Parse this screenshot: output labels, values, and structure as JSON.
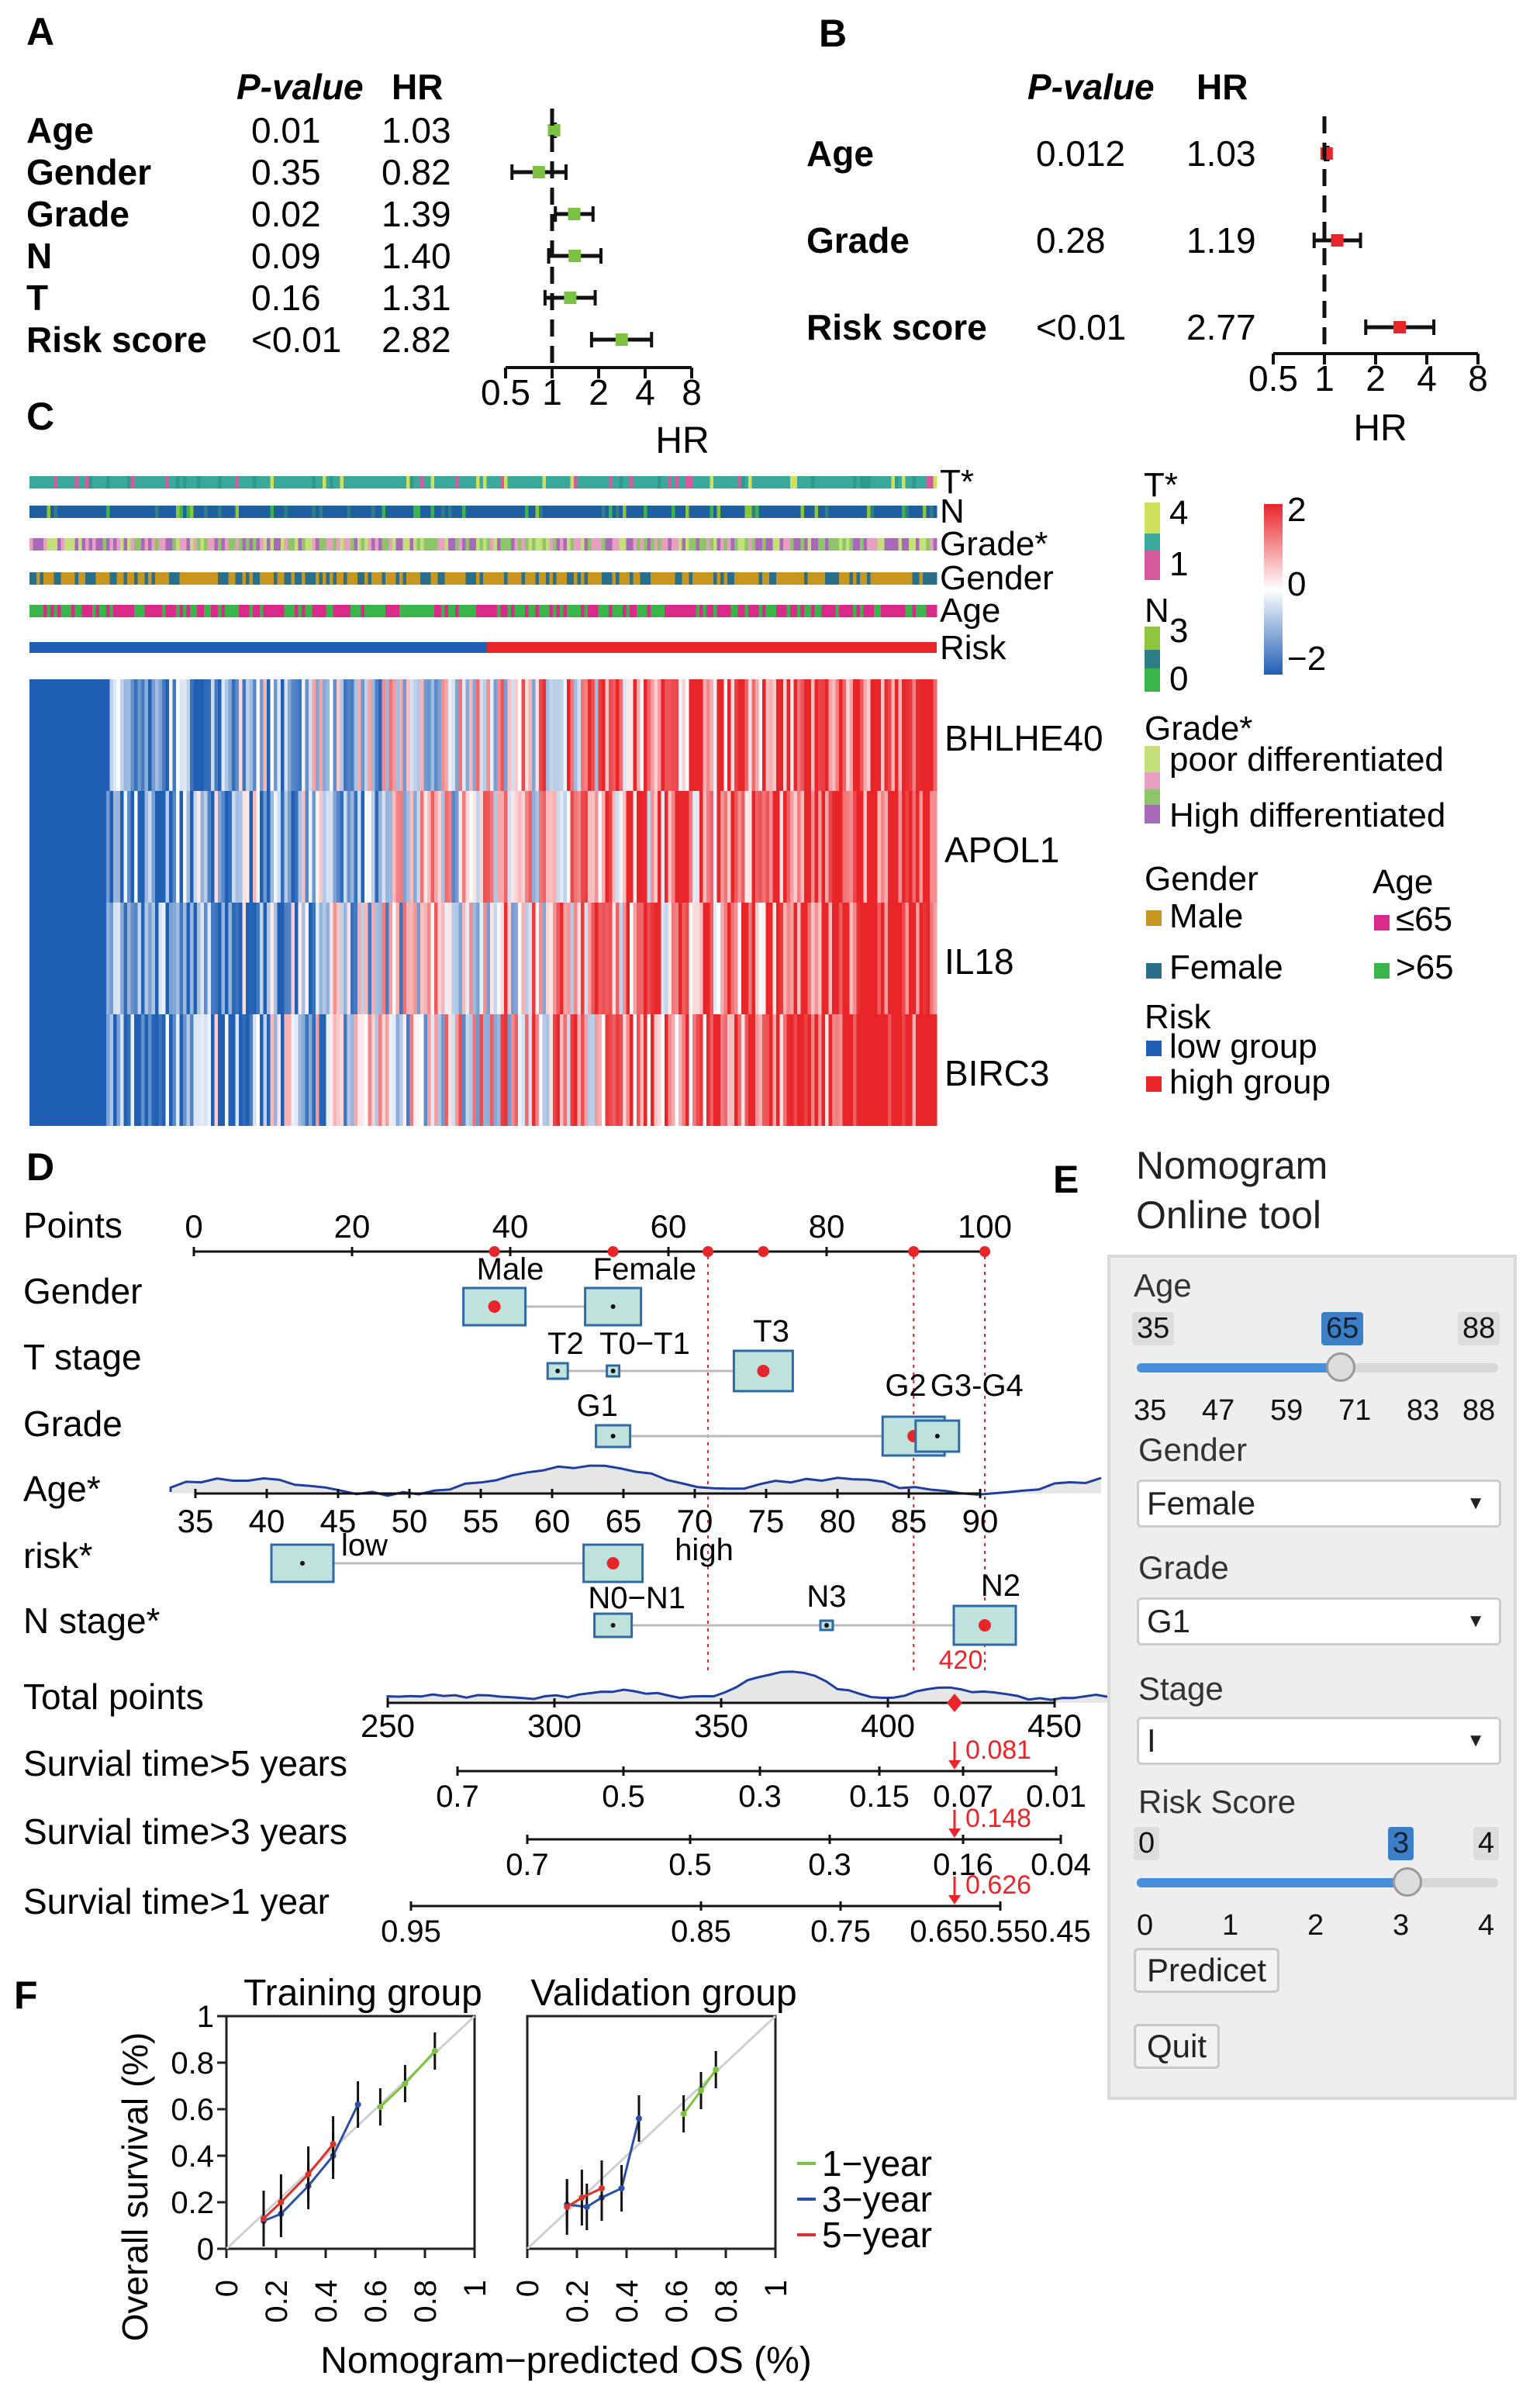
{
  "panel_labels": {
    "A": "A",
    "B": "B",
    "C": "C",
    "D": "D",
    "E": "E",
    "F": "F"
  },
  "forest_a": {
    "headers": {
      "p": "P-value",
      "hr": "HR"
    },
    "rows": [
      {
        "name": "Age",
        "p": "0.01",
        "hr": "1.03",
        "hr_val": 1.03,
        "lo": 1.01,
        "hi": 1.05
      },
      {
        "name": "Gender",
        "p": "0.35",
        "hr": "0.82",
        "hr_val": 0.82,
        "lo": 0.55,
        "hi": 1.23
      },
      {
        "name": "Grade",
        "p": "0.02",
        "hr": "1.39",
        "hr_val": 1.39,
        "lo": 1.05,
        "hi": 1.84
      },
      {
        "name": "N",
        "p": "0.09",
        "hr": "1.40",
        "hr_val": 1.4,
        "lo": 0.95,
        "hi": 2.07
      },
      {
        "name": "T",
        "p": "0.16",
        "hr": "1.31",
        "hr_val": 1.31,
        "lo": 0.9,
        "hi": 1.9
      },
      {
        "name": "Risk score",
        "p": "<0.01",
        "hr": "2.82",
        "hr_val": 2.82,
        "lo": 1.8,
        "hi": 4.4
      }
    ],
    "ticks": [
      "0.5",
      "1",
      "2",
      "4",
      "8"
    ],
    "xlabel": "HR",
    "marker_color": "#7cc242"
  },
  "forest_b": {
    "headers": {
      "p": "P-value",
      "hr": "HR"
    },
    "rows": [
      {
        "name": "Age",
        "p": "0.012",
        "hr": "1.03",
        "hr_val": 1.03,
        "lo": 1.01,
        "hi": 1.05
      },
      {
        "name": "Grade",
        "p": "0.28",
        "hr": "1.19",
        "hr_val": 1.19,
        "lo": 0.87,
        "hi": 1.63
      },
      {
        "name": "Risk score",
        "p": "<0.01",
        "hr": "2.77",
        "hr_val": 2.77,
        "lo": 1.75,
        "hi": 4.4
      }
    ],
    "ticks": [
      "0.5",
      "1",
      "2",
      "4",
      "8"
    ],
    "xlabel": "HR",
    "marker_color": "#e8262a"
  },
  "heatmap": {
    "annotation_rows": [
      "T*",
      "N",
      "Grade*",
      "Gender",
      "Age",
      "Risk"
    ],
    "genes": [
      "BHLHE40",
      "APOL1",
      "IL18",
      "BIRC3"
    ],
    "legend": {
      "t_title": "T*",
      "t_labels": [
        "4",
        "1"
      ],
      "n_title": "N",
      "n_labels": [
        "3",
        "0"
      ],
      "scale_labels": [
        "2",
        "0",
        "−2"
      ],
      "grade_title": "Grade*",
      "grade_labels": [
        "poor differentiated",
        "High differentiated"
      ],
      "gender_title": "Gender",
      "gender_labels": [
        "Male",
        "Female"
      ],
      "age_title": "Age",
      "age_labels": [
        "≤65",
        ">65"
      ],
      "risk_title": "Risk",
      "risk_labels": [
        "low group",
        "high group"
      ]
    },
    "colors": {
      "low": "#1f5fb4",
      "mid": "#ffffff",
      "high": "#e8262a",
      "male": "#c8961e",
      "female": "#2a6f8a",
      "young": "#d92a8a",
      "old": "#3ab54a"
    }
  },
  "nomogram": {
    "rows": [
      "Points",
      "Gender",
      "T stage",
      "Grade",
      "Age*",
      "risk*",
      "N stage*",
      "Total points",
      "Survial time>5 years",
      "Survial time>3 years",
      "Survial time>1 year"
    ],
    "points_ticks": [
      "0",
      "20",
      "40",
      "60",
      "80",
      "100"
    ],
    "gender_labels": [
      "Male",
      "Female"
    ],
    "t_labels": [
      "T2",
      "T0−T1",
      "T3"
    ],
    "grade_labels": [
      "G1",
      "G2",
      "G3-G4"
    ],
    "age_ticks": [
      "35",
      "40",
      "45",
      "50",
      "55",
      "60",
      "65",
      "70",
      "75",
      "80",
      "85",
      "90"
    ],
    "risk_labels": [
      "low",
      "high"
    ],
    "n_labels": [
      "N0−N1",
      "N3",
      "N2"
    ],
    "total_ticks": [
      "250",
      "300",
      "350",
      "400",
      "450"
    ],
    "total_value": "420",
    "s5_ticks": [
      "0.7",
      "0.5",
      "0.3",
      "0.15",
      "0.07",
      "0.01"
    ],
    "s5_value": "0.081",
    "s3_ticks": [
      "0.7",
      "0.5",
      "0.3",
      "0.16",
      "0.04"
    ],
    "s3_value": "0.148",
    "s1_ticks": [
      "0.95",
      "0.85",
      "0.75",
      "0.650.550.45"
    ],
    "s1_value": "0.626"
  },
  "tool": {
    "title1": "Nomogram",
    "title2": "Online tool",
    "age": {
      "label": "Age",
      "min": "35",
      "max": "88",
      "value": "65",
      "ticks": [
        "35",
        "47",
        "59",
        "71",
        "83",
        "88"
      ]
    },
    "gender": {
      "label": "Gender",
      "value": "Female"
    },
    "grade": {
      "label": "Grade",
      "value": "G1"
    },
    "stage": {
      "label": "Stage",
      "value": "I"
    },
    "risk": {
      "label": "Risk Score",
      "min": "0",
      "max": "4",
      "value": "3",
      "ticks": [
        "0",
        "1",
        "2",
        "3",
        "4"
      ]
    },
    "predict_label": "Predicet",
    "quit_label": "Quit"
  },
  "calibration": {
    "panels": [
      "Training group",
      "Validation group"
    ],
    "ylabel": "Overall survival (%)",
    "xlabel": "Nomogram−predicted OS (%)",
    "y_ticks": [
      "0",
      "0.2",
      "0.4",
      "0.6",
      "0.8",
      "1"
    ],
    "x_ticks": [
      "0",
      "0.2",
      "0.4",
      "0.6",
      "0.8",
      "1"
    ],
    "legend": [
      "1−year",
      "3−year",
      "5−year"
    ],
    "colors": {
      "1y": "#7cc242",
      "3y": "#2b4fa8",
      "5y": "#d9342b"
    }
  },
  "chart_data": [
    {
      "type": "scatter",
      "title": "A",
      "xlabel": "HR",
      "x_scale": "log2",
      "xlim": [
        0.5,
        8
      ],
      "series": [
        {
          "categories": [
            "Age",
            "Gender",
            "Grade",
            "N",
            "T",
            "Risk score"
          ],
          "values": [
            1.03,
            0.82,
            1.39,
            1.4,
            1.31,
            2.82
          ]
        }
      ]
    },
    {
      "type": "scatter",
      "title": "B",
      "xlabel": "HR",
      "x_scale": "log2",
      "xlim": [
        0.5,
        8
      ],
      "series": [
        {
          "categories": [
            "Age",
            "Grade",
            "Risk score"
          ],
          "values": [
            1.03,
            1.19,
            2.77
          ]
        }
      ]
    },
    {
      "type": "line",
      "title": "Training group",
      "xlabel": "Nomogram−predicted OS (%)",
      "ylabel": "Overall survival (%)",
      "xlim": [
        0,
        1
      ],
      "ylim": [
        0,
        1
      ],
      "series": [
        {
          "name": "1−year",
          "x": [
            0.62,
            0.72,
            0.84
          ],
          "y": [
            0.61,
            0.71,
            0.85
          ]
        },
        {
          "name": "3−year",
          "x": [
            0.15,
            0.22,
            0.33,
            0.43,
            0.53
          ],
          "y": [
            0.12,
            0.15,
            0.27,
            0.4,
            0.62
          ]
        },
        {
          "name": "5−year",
          "x": [
            0.15,
            0.22,
            0.33,
            0.43
          ],
          "y": [
            0.13,
            0.2,
            0.32,
            0.45
          ]
        }
      ]
    },
    {
      "type": "line",
      "title": "Validation group",
      "xlabel": "Nomogram−predicted OS (%)",
      "ylabel": "Overall survival (%)",
      "xlim": [
        0,
        1
      ],
      "ylim": [
        0,
        1
      ],
      "series": [
        {
          "name": "1−year",
          "x": [
            0.63,
            0.7,
            0.76
          ],
          "y": [
            0.58,
            0.68,
            0.77
          ]
        },
        {
          "name": "3−year",
          "x": [
            0.16,
            0.24,
            0.3,
            0.38,
            0.45
          ],
          "y": [
            0.19,
            0.18,
            0.22,
            0.26,
            0.56
          ]
        },
        {
          "name": "5−year",
          "x": [
            0.16,
            0.22,
            0.3
          ],
          "y": [
            0.18,
            0.22,
            0.26
          ]
        }
      ]
    }
  ]
}
